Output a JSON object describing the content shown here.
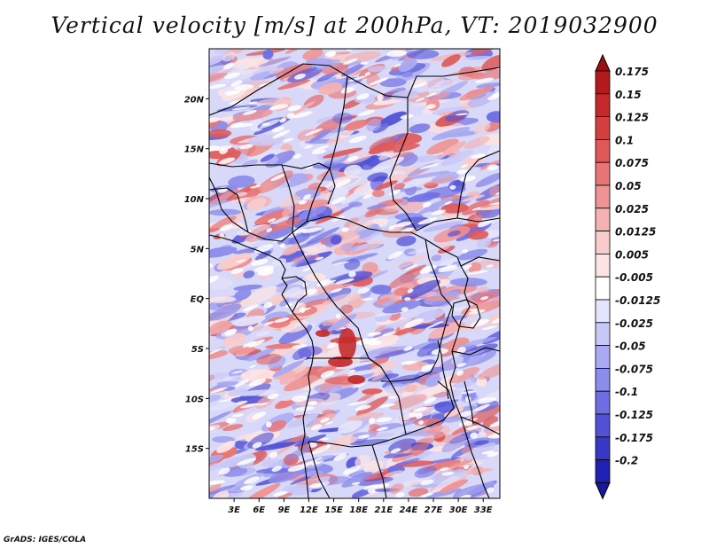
{
  "title": "Vertical velocity [m/s] at 200hPa, VT: 2019032900",
  "credit": "GrADS: IGES/COLA",
  "map": {
    "lon_range": [
      0,
      35
    ],
    "lat_range": [
      -20,
      25
    ],
    "lat_ticks": [
      {
        "value": 20,
        "label": "20N"
      },
      {
        "value": 15,
        "label": "15N"
      },
      {
        "value": 10,
        "label": "10N"
      },
      {
        "value": 5,
        "label": "5N"
      },
      {
        "value": 0,
        "label": "EQ"
      },
      {
        "value": -5,
        "label": "5S"
      },
      {
        "value": -10,
        "label": "10S"
      },
      {
        "value": -15,
        "label": "15S"
      }
    ],
    "lon_ticks": [
      {
        "value": 3,
        "label": "3E"
      },
      {
        "value": 6,
        "label": "6E"
      },
      {
        "value": 9,
        "label": "9E"
      },
      {
        "value": 12,
        "label": "12E"
      },
      {
        "value": 15,
        "label": "15E"
      },
      {
        "value": 18,
        "label": "18E"
      },
      {
        "value": 21,
        "label": "21E"
      },
      {
        "value": 24,
        "label": "24E"
      },
      {
        "value": 27,
        "label": "27E"
      },
      {
        "value": 30,
        "label": "30E"
      },
      {
        "value": 33,
        "label": "33E"
      }
    ]
  },
  "colorbar": {
    "levels": [
      {
        "label": "0.175",
        "color": "#b51a1a"
      },
      {
        "label": "0.15",
        "color": "#c42a2a"
      },
      {
        "label": "0.125",
        "color": "#d24040"
      },
      {
        "label": "0.1",
        "color": "#de5a5a"
      },
      {
        "label": "0.075",
        "color": "#e87676"
      },
      {
        "label": "0.05",
        "color": "#ef9494"
      },
      {
        "label": "0.025",
        "color": "#f5b2b2"
      },
      {
        "label": "0.0125",
        "color": "#f9cccc"
      },
      {
        "label": "0.005",
        "color": "#fce4e4"
      },
      {
        "label": "-0.005",
        "color": "#ffffff"
      },
      {
        "label": "-0.0125",
        "color": "#e4e4fc"
      },
      {
        "label": "-0.025",
        "color": "#c8c8f7"
      },
      {
        "label": "-0.05",
        "color": "#aaaaf2"
      },
      {
        "label": "-0.075",
        "color": "#8c8ceb"
      },
      {
        "label": "-0.1",
        "color": "#6e6ee2"
      },
      {
        "label": "-0.125",
        "color": "#5252d6"
      },
      {
        "label": "-0.175",
        "color": "#3838c6"
      },
      {
        "label": "-0.2",
        "color": "#2020b2"
      }
    ],
    "top_color": "#9e1010",
    "bottom_color": "#18189c"
  }
}
